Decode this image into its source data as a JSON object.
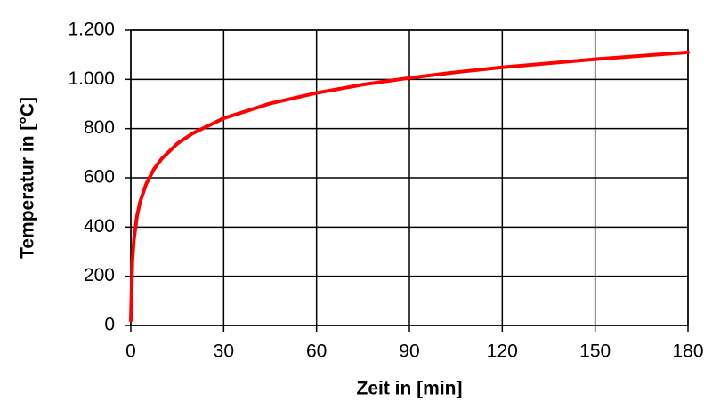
{
  "chart_data": {
    "type": "line",
    "x_label": "Zeit in [min]",
    "y_label": "Temperatur in [°C]",
    "x": [
      0,
      0.5,
      1,
      2,
      3,
      5,
      7.5,
      10,
      15,
      20,
      30,
      45,
      60,
      75,
      90,
      105,
      120,
      150,
      180
    ],
    "values": [
      20,
      261,
      349,
      445,
      502,
      576,
      636,
      678,
      739,
      781,
      842,
      902,
      945,
      979,
      1006,
      1029,
      1049,
      1082,
      1110
    ],
    "color": "#ff0000",
    "xlim": [
      0,
      180
    ],
    "xticks": [
      0,
      30,
      60,
      90,
      120,
      150,
      180
    ],
    "ylim": [
      0,
      1200
    ],
    "yticks": [
      0,
      200,
      400,
      600,
      800,
      {
        "value": 1000,
        "label": "1.000"
      },
      {
        "value": 1200,
        "label": "1.200"
      }
    ],
    "grid": true
  }
}
